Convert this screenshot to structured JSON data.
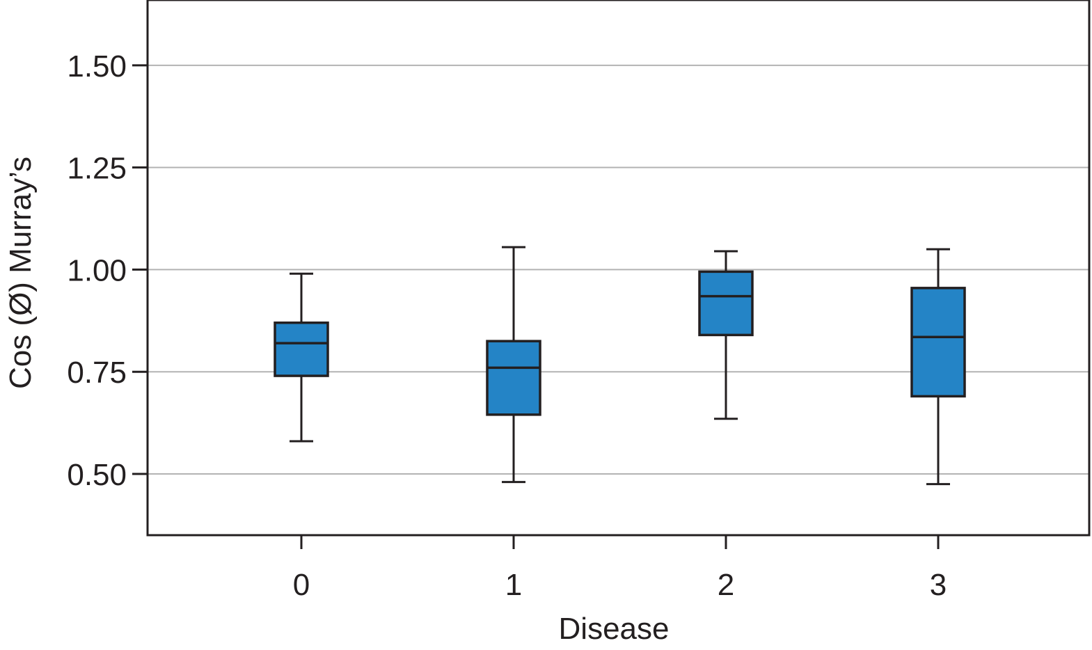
{
  "chart_data": {
    "type": "box",
    "title": "",
    "xlabel": "Disease",
    "ylabel": "Cos (Ø) Murray’s",
    "categories": [
      "0",
      "1",
      "2",
      "3"
    ],
    "ylim": [
      0.35,
      1.66
    ],
    "yticks": [
      0.5,
      0.75,
      1.0,
      1.25,
      1.5
    ],
    "ytick_labels": [
      "0.50",
      "0.75",
      "1.00",
      "1.25",
      "1.50"
    ],
    "grid": "horizontal",
    "boxes": [
      {
        "category": "0",
        "whisker_low": 0.58,
        "q1": 0.74,
        "median": 0.82,
        "q3": 0.87,
        "whisker_high": 0.99
      },
      {
        "category": "1",
        "whisker_low": 0.48,
        "q1": 0.645,
        "median": 0.76,
        "q3": 0.825,
        "whisker_high": 1.055
      },
      {
        "category": "2",
        "whisker_low": 0.635,
        "q1": 0.84,
        "median": 0.935,
        "q3": 0.995,
        "whisker_high": 1.045
      },
      {
        "category": "3",
        "whisker_low": 0.475,
        "q1": 0.69,
        "median": 0.835,
        "q3": 0.955,
        "whisker_high": 1.05
      }
    ],
    "colors": {
      "box_fill": "#2484c6",
      "stroke": "#231f20",
      "grid": "#b3b3b3"
    }
  }
}
